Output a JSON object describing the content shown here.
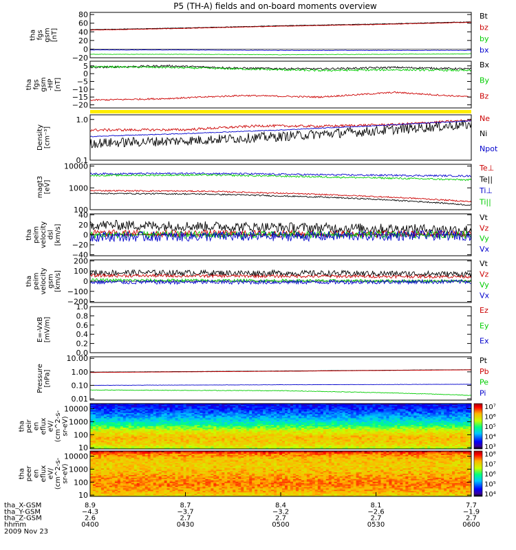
{
  "title": "P5 (TH-A) fields and on-board moments overview",
  "colors": {
    "black": "#000000",
    "red": "#cc0000",
    "green": "#00cc00",
    "blue": "#0000cc",
    "yellow": "#ffee00"
  },
  "chart_data": [
    {
      "type": "line",
      "ylabel": [
        "tha",
        "fgs",
        "gsm",
        "[nT]"
      ],
      "ylim": [
        -20,
        85
      ],
      "yticks": [
        {
          "v": 80,
          "label": "80"
        },
        {
          "v": 60,
          "label": "60"
        },
        {
          "v": 40,
          "label": "40"
        },
        {
          "v": 20,
          "label": "20"
        },
        {
          "v": 0,
          "label": "0"
        },
        {
          "v": -20,
          "label": "−20"
        }
      ],
      "zero_line": true,
      "series": [
        {
          "name": "Bt",
          "color": "#000000",
          "x": [
            0,
            0.25,
            0.5,
            0.75,
            1
          ],
          "y": [
            45,
            49,
            54,
            58,
            63
          ],
          "noise": 0.5
        },
        {
          "name": "bz",
          "color": "#cc0000",
          "x": [
            0,
            0.25,
            0.5,
            0.75,
            1
          ],
          "y": [
            44,
            48,
            53,
            57,
            62
          ],
          "noise": 0.5
        },
        {
          "name": "by",
          "color": "#00cc00",
          "x": [
            0,
            0.25,
            0.5,
            0.75,
            1
          ],
          "y": [
            -12,
            -12,
            -13,
            -12,
            -11
          ],
          "noise": 0.5
        },
        {
          "name": "bx",
          "color": "#0000cc",
          "x": [
            0,
            0.25,
            0.5,
            0.75,
            1
          ],
          "y": [
            -2,
            -2,
            -3,
            -3,
            -3
          ],
          "noise": 0.4
        }
      ]
    },
    {
      "type": "line",
      "ylabel": [
        "tha",
        "fgs",
        "gsm",
        "-HP",
        "[nT]"
      ],
      "ylim": [
        -22,
        8
      ],
      "yticks": [
        {
          "v": 5,
          "label": "5"
        },
        {
          "v": 0,
          "label": "0"
        },
        {
          "v": -5,
          "label": "−5"
        },
        {
          "v": -10,
          "label": "−10"
        },
        {
          "v": -15,
          "label": "−15"
        },
        {
          "v": -20,
          "label": "−20"
        }
      ],
      "series": [
        {
          "name": "Bx",
          "color": "#000000",
          "x": [
            0,
            0.2,
            0.4,
            0.6,
            0.8,
            1
          ],
          "y": [
            4,
            5,
            3.5,
            3,
            4,
            3
          ],
          "noise": 0.6
        },
        {
          "name": "By",
          "color": "#00cc00",
          "x": [
            0,
            0.2,
            0.4,
            0.6,
            0.8,
            1
          ],
          "y": [
            4.5,
            4,
            3,
            2,
            2.5,
            2
          ],
          "noise": 0.6
        },
        {
          "name": "Bz",
          "color": "#cc0000",
          "x": [
            0,
            0.2,
            0.4,
            0.6,
            0.8,
            1
          ],
          "y": [
            -17,
            -16,
            -14,
            -15,
            -12,
            -15
          ],
          "noise": 0.5
        }
      ]
    },
    {
      "type": "line",
      "ylabel": [
        "Density",
        "[cm⁻³]"
      ],
      "log": true,
      "ylim": [
        0.1,
        1.3
      ],
      "yticks": [
        {
          "v": 1.0,
          "label": "1.0"
        },
        {
          "v": 0.1,
          "label": "0.1"
        }
      ],
      "series": [
        {
          "name": "Ne",
          "color": "#cc0000",
          "x": [
            0,
            0.25,
            0.45,
            0.6,
            0.8,
            1
          ],
          "y": [
            0.55,
            0.56,
            0.7,
            0.68,
            0.75,
            0.95
          ],
          "noise": 0.03
        },
        {
          "name": "Ni",
          "color": "#000000",
          "x": [
            0,
            0.25,
            0.5,
            0.75,
            1
          ],
          "y": [
            0.26,
            0.3,
            0.38,
            0.52,
            0.75
          ],
          "noise": 0.12
        },
        {
          "name": "Npot",
          "color": "#0000cc",
          "x": [
            0,
            0.25,
            0.5,
            0.75,
            1
          ],
          "y": [
            0.38,
            0.45,
            0.55,
            0.7,
            0.92
          ],
          "noise": 0.01
        }
      ]
    },
    {
      "type": "line",
      "ylabel": [
        "magt3",
        "[eV]"
      ],
      "log": true,
      "ylim": [
        100,
        12000
      ],
      "yticks": [
        {
          "v": 10000,
          "label": "10000"
        },
        {
          "v": 1000,
          "label": "1000"
        },
        {
          "v": 100,
          "label": "100"
        }
      ],
      "series": [
        {
          "name": "Te⊥",
          "color": "#cc0000",
          "x": [
            0,
            0.3,
            0.6,
            1
          ],
          "y": [
            750,
            700,
            500,
            230
          ],
          "noise": 0.03
        },
        {
          "name": "Te||",
          "color": "#000000",
          "x": [
            0,
            0.3,
            0.6,
            1
          ],
          "y": [
            560,
            520,
            380,
            160
          ],
          "noise": 0.03
        },
        {
          "name": "Ti⊥",
          "color": "#0000cc",
          "x": [
            0,
            0.3,
            0.6,
            1
          ],
          "y": [
            4400,
            4600,
            4000,
            3500
          ],
          "noise": 0.04
        },
        {
          "name": "Ti||",
          "color": "#00cc00",
          "x": [
            0,
            0.3,
            0.6,
            1
          ],
          "y": [
            3700,
            3900,
            3200,
            2300
          ],
          "noise": 0.04
        }
      ]
    },
    {
      "type": "line",
      "ylabel": [
        "tha",
        "peim",
        "velocity",
        "dsl",
        "[km/s]"
      ],
      "ylim": [
        -42,
        42
      ],
      "yticks": [
        {
          "v": 40,
          "label": "40"
        },
        {
          "v": 20,
          "label": "20"
        },
        {
          "v": 0,
          "label": "0"
        },
        {
          "v": -20,
          "label": "−20"
        },
        {
          "v": -40,
          "label": "−40"
        }
      ],
      "zero_line": true,
      "series": [
        {
          "name": "Vt",
          "color": "#000000",
          "x": [
            0,
            0.5,
            1
          ],
          "y": [
            20,
            15,
            10
          ],
          "noise": 10
        },
        {
          "name": "Vz",
          "color": "#cc0000",
          "x": [
            0,
            0.5,
            1
          ],
          "y": [
            3,
            2,
            1
          ],
          "noise": 7
        },
        {
          "name": "Vy",
          "color": "#00cc00",
          "x": [
            0,
            0.5,
            1
          ],
          "y": [
            0,
            0,
            0
          ],
          "noise": 7
        },
        {
          "name": "Vx",
          "color": "#0000cc",
          "x": [
            0,
            0.5,
            1
          ],
          "y": [
            -4,
            -3,
            -1
          ],
          "noise": 10
        }
      ]
    },
    {
      "type": "line",
      "ylabel": [
        "tha",
        "peim",
        "velocity",
        "gsm",
        "[km/s]"
      ],
      "ylim": [
        -210,
        210
      ],
      "yticks": [
        {
          "v": 200,
          "label": "200"
        },
        {
          "v": 100,
          "label": "100"
        },
        {
          "v": 0,
          "label": "0"
        },
        {
          "v": -100,
          "label": "−100"
        },
        {
          "v": -200,
          "label": "−200"
        }
      ],
      "zero_line": true,
      "series": [
        {
          "name": "Vt",
          "color": "#000000",
          "x": [
            0,
            0.5,
            1
          ],
          "y": [
            85,
            80,
            70
          ],
          "noise": 28
        },
        {
          "name": "Vz",
          "color": "#cc0000",
          "x": [
            0,
            0.5,
            1
          ],
          "y": [
            55,
            50,
            45
          ],
          "noise": 15
        },
        {
          "name": "Vy",
          "color": "#00cc00",
          "x": [
            0,
            0.5,
            1
          ],
          "y": [
            10,
            5,
            0
          ],
          "noise": 15
        },
        {
          "name": "Vx",
          "color": "#0000cc",
          "x": [
            0,
            0.5,
            1
          ],
          "y": [
            -10,
            -10,
            -5
          ],
          "noise": 20
        }
      ]
    },
    {
      "type": "line",
      "ylabel": [
        "E=-VxB",
        "[mV/m]"
      ],
      "ylim": [
        0,
        1
      ],
      "yticks": [
        {
          "v": 1.0,
          "label": "1.0"
        },
        {
          "v": 0.8,
          "label": "0.8"
        },
        {
          "v": 0.6,
          "label": "0.6"
        },
        {
          "v": 0.4,
          "label": "0.4"
        },
        {
          "v": 0.2,
          "label": "0.2"
        },
        {
          "v": 0.0,
          "label": "0.0"
        }
      ],
      "series": [
        {
          "name": "Ez",
          "color": "#cc0000",
          "x": [],
          "y": []
        },
        {
          "name": "Ey",
          "color": "#00cc00",
          "x": [],
          "y": []
        },
        {
          "name": "Ex",
          "color": "#0000cc",
          "x": [],
          "y": []
        }
      ]
    },
    {
      "type": "line",
      "ylabel": [
        "Pressure",
        "[nPa]"
      ],
      "log": true,
      "ylim": [
        0.008,
        13
      ],
      "yticks": [
        {
          "v": 10,
          "label": "10.00"
        },
        {
          "v": 1,
          "label": "1.00"
        },
        {
          "v": 0.1,
          "label": "0.10"
        },
        {
          "v": 0.01,
          "label": "0.01"
        }
      ],
      "series": [
        {
          "name": "Pt",
          "color": "#000000",
          "x": [
            0,
            0.5,
            1
          ],
          "y": [
            0.95,
            1.15,
            1.45
          ],
          "noise": 0.005
        },
        {
          "name": "Pb",
          "color": "#cc0000",
          "x": [
            0,
            0.5,
            1
          ],
          "y": [
            0.9,
            1.1,
            1.4
          ],
          "noise": 0.005
        },
        {
          "name": "Pe",
          "color": "#00cc00",
          "x": [
            0,
            0.5,
            1
          ],
          "y": [
            0.045,
            0.04,
            0.018
          ],
          "noise": 0.02
        },
        {
          "name": "Pi",
          "color": "#0000cc",
          "x": [
            0,
            0.5,
            1
          ],
          "y": [
            0.1,
            0.11,
            0.12
          ],
          "noise": 0.01
        }
      ]
    },
    {
      "type": "heatmap",
      "ylabel": [
        "tha",
        "peir",
        "en",
        "eflux",
        "eV/",
        "(cm^2-s-",
        "sr-eV)"
      ],
      "log": true,
      "ylim": [
        8,
        25000
      ],
      "yticks": [
        {
          "v": 10000,
          "label": "10000"
        },
        {
          "v": 1000,
          "label": "1000"
        },
        {
          "v": 100,
          "label": "100"
        },
        {
          "v": 10,
          "label": "10"
        }
      ],
      "colorbar": {
        "min_exp": 3,
        "max_exp": 7,
        "labels": [
          "10⁷",
          "10⁶",
          "10⁵",
          "10⁴",
          "10³"
        ]
      },
      "profile": [
        [
          10,
          3.6
        ],
        [
          30,
          3.9
        ],
        [
          100,
          4.3
        ],
        [
          300,
          4.8
        ],
        [
          1000,
          5.6
        ],
        [
          3000,
          6.0
        ],
        [
          10000,
          5.9
        ],
        [
          25000,
          5.4
        ]
      ]
    },
    {
      "type": "heatmap",
      "ylabel": [
        "tha",
        "peer",
        "en",
        "eflux",
        "eV/",
        "(cm^2-s-",
        "sr-eV)"
      ],
      "log": true,
      "ylim": [
        8,
        25000
      ],
      "yticks": [
        {
          "v": 10000,
          "label": "10000"
        },
        {
          "v": 1000,
          "label": "1000"
        },
        {
          "v": 100,
          "label": "100"
        },
        {
          "v": 10,
          "label": "10"
        }
      ],
      "colorbar": {
        "min_exp": 4,
        "max_exp": 8,
        "labels": [
          "10⁸",
          "10⁷",
          "10⁶",
          "10⁵",
          "10⁴"
        ]
      },
      "profile": [
        [
          8,
          7.9
        ],
        [
          12,
          7.4
        ],
        [
          30,
          7.0
        ],
        [
          100,
          6.9
        ],
        [
          300,
          7.0
        ],
        [
          1000,
          7.2
        ],
        [
          3000,
          7.3
        ],
        [
          10000,
          7.1
        ],
        [
          25000,
          6.8
        ]
      ]
    }
  ],
  "xaxis": {
    "tick_times": [
      "0400",
      "0430",
      "0500",
      "0530",
      "0600"
    ],
    "rows": [
      {
        "label": "tha_X-GSM",
        "values": [
          "8.9",
          "8.7",
          "8.4",
          "8.1",
          "7.7"
        ]
      },
      {
        "label": "tha_Y-GSM",
        "values": [
          "−4.3",
          "−3.7",
          "−3.2",
          "−2.6",
          "−1.9"
        ]
      },
      {
        "label": "tha_Z-GSM",
        "values": [
          "2.6",
          "2.7",
          "2.7",
          "2.7",
          "2.7"
        ]
      },
      {
        "label": "hhmm",
        "values": [
          "0400",
          "0430",
          "0500",
          "0530",
          "0600"
        ]
      }
    ],
    "date": "2009 Nov 23"
  }
}
